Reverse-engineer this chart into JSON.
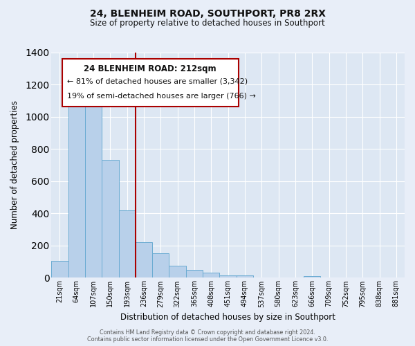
{
  "title": "24, BLENHEIM ROAD, SOUTHPORT, PR8 2RX",
  "subtitle": "Size of property relative to detached houses in Southport",
  "xlabel": "Distribution of detached houses by size in Southport",
  "ylabel": "Number of detached properties",
  "categories": [
    "21sqm",
    "64sqm",
    "107sqm",
    "150sqm",
    "193sqm",
    "236sqm",
    "279sqm",
    "322sqm",
    "365sqm",
    "408sqm",
    "451sqm",
    "494sqm",
    "537sqm",
    "580sqm",
    "623sqm",
    "666sqm",
    "709sqm",
    "752sqm",
    "795sqm",
    "838sqm",
    "881sqm"
  ],
  "values": [
    105,
    1160,
    1160,
    730,
    420,
    220,
    150,
    75,
    50,
    30,
    15,
    15,
    0,
    0,
    0,
    10,
    0,
    0,
    0,
    0,
    0
  ],
  "bar_color": "#b8d0ea",
  "bar_edge_color": "#6aabd2",
  "background_color": "#e8eef8",
  "plot_bg_color": "#dde7f3",
  "grid_color": "#ffffff",
  "vline_x": 4.5,
  "vline_color": "#aa0000",
  "annotation_title": "24 BLENHEIM ROAD: 212sqm",
  "annotation_line1": "← 81% of detached houses are smaller (3,342)",
  "annotation_line2": "19% of semi-detached houses are larger (766) →",
  "annotation_box_color": "#ffffff",
  "annotation_box_edge": "#aa0000",
  "ylim": [
    0,
    1400
  ],
  "yticks": [
    0,
    200,
    400,
    600,
    800,
    1000,
    1200,
    1400
  ],
  "footer1": "Contains HM Land Registry data © Crown copyright and database right 2024.",
  "footer2": "Contains public sector information licensed under the Open Government Licence v3.0."
}
